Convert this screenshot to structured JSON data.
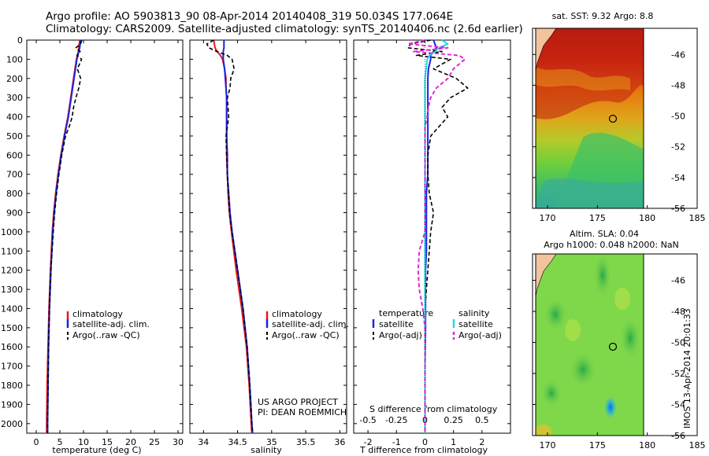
{
  "header": {
    "line1": "Argo profile: AO 5903813_90 08-Apr-2014 20140408_319 50.034S 177.064E",
    "line2": "Climatology: CARS2009. Satellite-adjusted climatology: synTS_20140406.nc (2.6d earlier)"
  },
  "depth_ticks": [
    "0",
    "100",
    "200",
    "300",
    "400",
    "500",
    "600",
    "700",
    "800",
    "900",
    "1000",
    "1100",
    "1200",
    "1300",
    "1400",
    "1500",
    "1600",
    "1700",
    "1800",
    "1900",
    "2000"
  ],
  "credits": {
    "line1": "US ARGO PROJECT",
    "line2": "PI: DEAN ROEMMICH"
  },
  "side_label": "IMOS 13-Apr-2014 20:01:33",
  "colors": {
    "climatology": "#e8171b",
    "satellite": "#1b23e0",
    "argo": "#000000",
    "sal_satellite": "#1fd8e8",
    "sal_argo": "#e02ad8"
  },
  "chart_data": [
    {
      "type": "line",
      "id": "temperature",
      "xlabel": "temperature (deg C)",
      "xlim": [
        -2,
        31
      ],
      "ylim": [
        2050,
        0
      ],
      "xticks": [
        "0",
        "5",
        "10",
        "15",
        "20",
        "25",
        "30"
      ],
      "legend": [
        "climatology",
        "satellite-adj. clim.",
        "Argo(..raw -QC)"
      ],
      "depth": [
        0,
        20,
        40,
        60,
        80,
        100,
        150,
        200,
        250,
        300,
        350,
        400,
        450,
        500,
        600,
        700,
        800,
        900,
        1000,
        1200,
        1400,
        1600,
        1800,
        2000,
        2050
      ],
      "series": [
        {
          "name": "climatology",
          "values": [
            9.2,
            9.1,
            9.0,
            8.9,
            8.7,
            8.5,
            8.2,
            7.9,
            7.6,
            7.3,
            7.0,
            6.7,
            6.3,
            5.9,
            5.2,
            4.6,
            4.1,
            3.7,
            3.4,
            3.0,
            2.7,
            2.5,
            2.3,
            2.2,
            2.2
          ]
        },
        {
          "name": "satellite-adj. clim.",
          "values": [
            9.4,
            9.3,
            9.2,
            9.0,
            8.8,
            8.6,
            8.3,
            8.0,
            7.7,
            7.4,
            7.1,
            6.8,
            6.4,
            6.0,
            5.3,
            4.7,
            4.2,
            3.8,
            3.5,
            3.1,
            2.8,
            2.6,
            2.5,
            2.4,
            2.4
          ]
        },
        {
          "name": "Argo(..raw -QC)",
          "values": [
            9.6,
            9.4,
            8.4,
            9.3,
            8.6,
            9.6,
            8.7,
            9.4,
            9.0,
            8.4,
            7.9,
            7.6,
            7.0,
            6.2,
            5.4,
            4.8,
            4.3,
            3.9,
            3.6,
            3.1,
            2.8,
            2.6,
            2.5,
            2.4,
            2.4
          ]
        }
      ]
    },
    {
      "type": "line",
      "id": "salinity",
      "xlabel": "salinity",
      "xlim": [
        33.8,
        36.1
      ],
      "ylim": [
        2050,
        0
      ],
      "xticks": [
        "34",
        "34.5",
        "35",
        "35.5",
        "36"
      ],
      "legend": [
        "climatology",
        "satellite-adj. clim.",
        "Argo(..raw -QC)"
      ],
      "depth": [
        0,
        20,
        40,
        60,
        80,
        100,
        150,
        200,
        250,
        300,
        400,
        500,
        600,
        700,
        800,
        900,
        1000,
        1200,
        1400,
        1600,
        1800,
        2000,
        2050
      ],
      "series": [
        {
          "name": "climatology",
          "values": [
            34.15,
            34.16,
            34.17,
            34.2,
            34.25,
            34.28,
            34.31,
            34.33,
            34.33,
            34.34,
            34.34,
            34.34,
            34.34,
            34.35,
            34.36,
            34.38,
            34.41,
            34.48,
            34.56,
            34.63,
            34.67,
            34.7,
            34.71
          ]
        },
        {
          "name": "satellite-adj. clim.",
          "values": [
            34.3,
            34.3,
            34.3,
            34.29,
            34.29,
            34.29,
            34.31,
            34.32,
            34.33,
            34.34,
            34.34,
            34.34,
            34.35,
            34.35,
            34.37,
            34.39,
            34.42,
            34.5,
            34.58,
            34.64,
            34.68,
            34.71,
            34.72
          ]
        },
        {
          "name": "Argo(..raw -QC)",
          "values": [
            34.15,
            34.05,
            34.08,
            34.2,
            34.35,
            34.42,
            34.45,
            34.4,
            34.39,
            34.35,
            34.37,
            34.33,
            34.34,
            34.35,
            34.37,
            34.38,
            34.42,
            34.5,
            34.58,
            34.64,
            34.68,
            34.71,
            34.72
          ]
        }
      ]
    },
    {
      "type": "line",
      "id": "difference",
      "xlabel": "T difference from climatology",
      "xlabel_top": "S difference from climatology",
      "xlim": [
        -2.5,
        3
      ],
      "ylim": [
        2050,
        0
      ],
      "xticks": [
        "-2",
        "-1",
        "0",
        "1",
        "2"
      ],
      "xticks_top": [
        "-0.5",
        "-0.25",
        "0",
        "0.25",
        "0.5"
      ],
      "legend_headers": [
        "temperature",
        "salinity"
      ],
      "legend": [
        "satellite",
        "Argo(-adj)",
        "satellite",
        "Argo(-adj)"
      ],
      "depth": [
        0,
        20,
        40,
        60,
        80,
        100,
        150,
        200,
        250,
        300,
        350,
        400,
        450,
        500,
        600,
        700,
        800,
        900,
        1000,
        1100,
        1200,
        1300,
        1400,
        1500,
        1700,
        1900,
        2050
      ],
      "series": [
        {
          "name": "temperature satellite",
          "values": [
            0.3,
            0.35,
            0.4,
            0.3,
            0.2,
            0.2,
            0.12,
            0.1,
            0.1,
            0.1,
            0.1,
            0.1,
            0.1,
            0.1,
            0.1,
            0.1,
            0.05,
            0.05,
            0.05,
            0.05,
            0.02,
            0.02,
            0.02,
            0.02,
            0.0,
            0.0,
            0.0
          ]
        },
        {
          "name": "temperature Argo(-adj)",
          "values": [
            0.2,
            -0.5,
            -0.6,
            0.6,
            -0.3,
            0.9,
            0.3,
            1.1,
            1.5,
            0.9,
            0.6,
            0.8,
            0.5,
            0.2,
            0.1,
            0.1,
            0.15,
            0.3,
            0.2,
            0.15,
            0.1,
            0.05,
            0.0,
            0.0,
            0.0,
            0.0,
            0.0
          ]
        },
        {
          "name": "salinity satellite",
          "values": [
            0.15,
            0.2,
            0.12,
            0.09,
            0.04,
            0.02,
            0.01,
            0.0,
            0.0,
            0.0,
            0.0,
            0.0,
            0.0,
            0.0,
            0.0,
            0.0,
            0.0,
            0.0,
            0.0,
            0.0,
            0.0,
            0.0,
            0.0,
            0.0,
            0.0,
            0.0,
            0.0
          ]
        },
        {
          "name": "salinity Argo(-adj)",
          "values": [
            0.0,
            -0.15,
            0.2,
            -0.1,
            0.3,
            0.35,
            0.25,
            0.2,
            0.1,
            0.05,
            0.03,
            0.02,
            0.0,
            0.0,
            0.0,
            0.0,
            0.0,
            0.0,
            0.0,
            -0.05,
            -0.06,
            -0.05,
            -0.02,
            0.0,
            0.0,
            0.0,
            0.0
          ]
        }
      ]
    },
    {
      "type": "heatmap",
      "id": "sst_map",
      "title": "sat. SST: 9.32 Argo: 8.8",
      "xlim": [
        168.5,
        185
      ],
      "ylim": [
        -56,
        -44.3
      ],
      "xticks": [
        "170",
        "175",
        "180",
        "185"
      ],
      "yticks": [
        "-46",
        "-48",
        "-50",
        "-52",
        "-54",
        "-56"
      ],
      "profile_location": {
        "lon": 177.064,
        "lat": -50.034
      }
    },
    {
      "type": "heatmap",
      "id": "sla_map",
      "title": "Altim. SLA: 0.04",
      "subtitle": "Argo h1000: 0.048 h2000: NaN",
      "xlim": [
        168.5,
        185
      ],
      "ylim": [
        -56,
        -44.3
      ],
      "xticks": [
        "170",
        "175",
        "180",
        "185"
      ],
      "yticks": [
        "-46",
        "-48",
        "-50",
        "-52",
        "-54",
        "-56"
      ],
      "profile_location": {
        "lon": 177.064,
        "lat": -50.034
      }
    }
  ]
}
